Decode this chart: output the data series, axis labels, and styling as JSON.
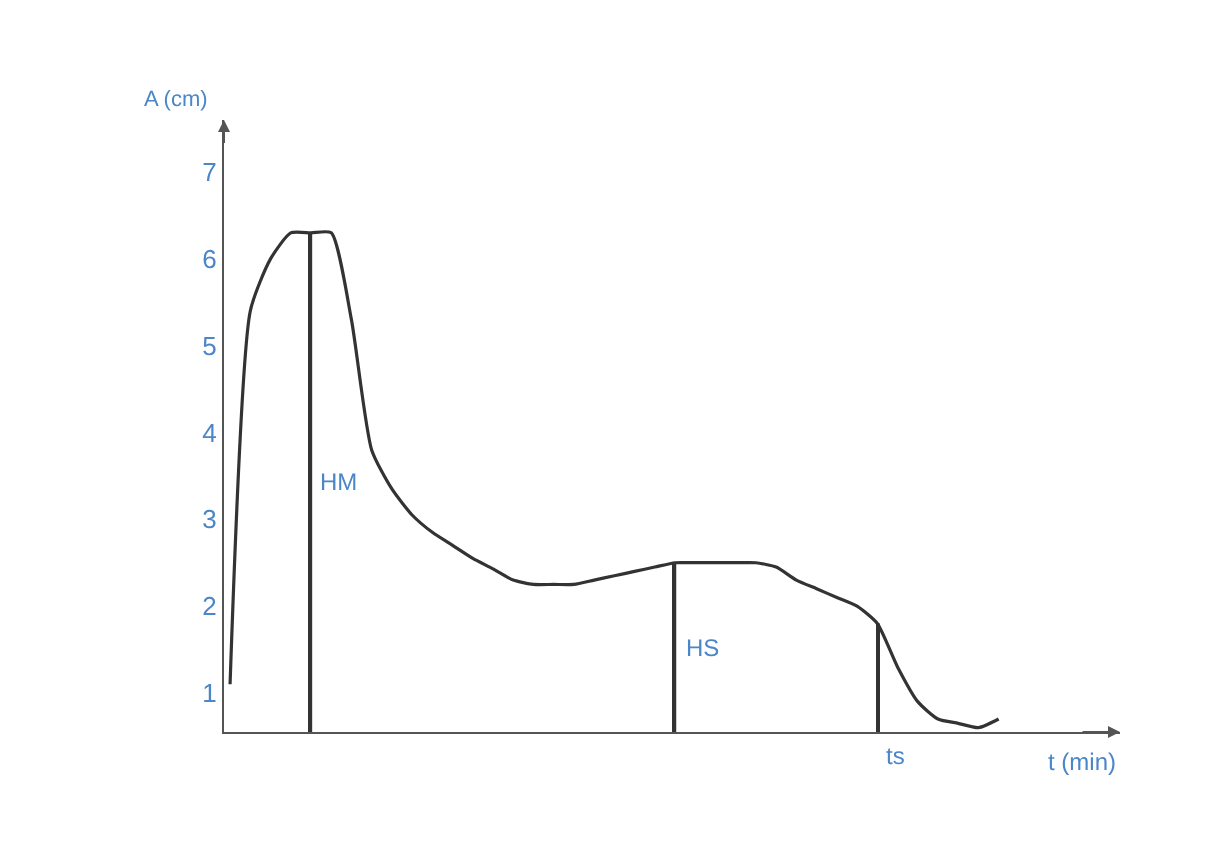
{
  "chart_data": {
    "type": "line",
    "xlabel": "t (min)",
    "ylabel": "A (cm)",
    "categories": [
      null,
      null,
      null,
      null,
      null,
      null,
      null,
      null,
      null,
      null,
      null,
      null,
      null,
      null,
      null,
      null,
      null,
      null,
      null,
      null,
      null,
      null,
      null,
      null,
      null,
      null,
      null,
      null,
      null,
      null,
      null,
      null,
      null,
      null,
      null,
      null,
      null,
      null,
      null
    ],
    "series": [
      {
        "type": "bar",
        "color": "#333333",
        "values": [
          null,
          null,
          null,
          null,
          6.3,
          null,
          null,
          null,
          null,
          null,
          null,
          null,
          null,
          null,
          null,
          null,
          null,
          null,
          null,
          null,
          null,
          null,
          2.5,
          null,
          null,
          null,
          null,
          null,
          null,
          null,
          null,
          null,
          1.8,
          null,
          null,
          null,
          null,
          null,
          null
        ]
      },
      {
        "color": "#333333",
        "values": [
          1.1,
          5.4,
          6.0,
          6.3,
          6.3,
          6.3,
          5.3,
          3.8,
          3.35,
          3.05,
          2.85,
          2.7,
          2.55,
          2.43,
          2.3,
          2.25,
          2.25,
          2.25,
          2.3,
          2.35,
          2.4,
          2.45,
          2.5,
          2.5,
          2.5,
          2.5,
          2.5,
          2.45,
          2.3,
          2.2,
          2.1,
          2.0,
          1.8,
          1.3,
          0.9,
          0.7,
          0.65,
          0.6,
          0.7
        ]
      }
    ],
    "ylim": [
      0.55,
      7.6
    ],
    "yticks": [
      1,
      2,
      3,
      4,
      5,
      6,
      7
    ],
    "tick_labels": "y",
    "marker": "none",
    "line_style": "solid",
    "annotations": [
      "HM",
      "HS",
      "ts"
    ]
  }
}
